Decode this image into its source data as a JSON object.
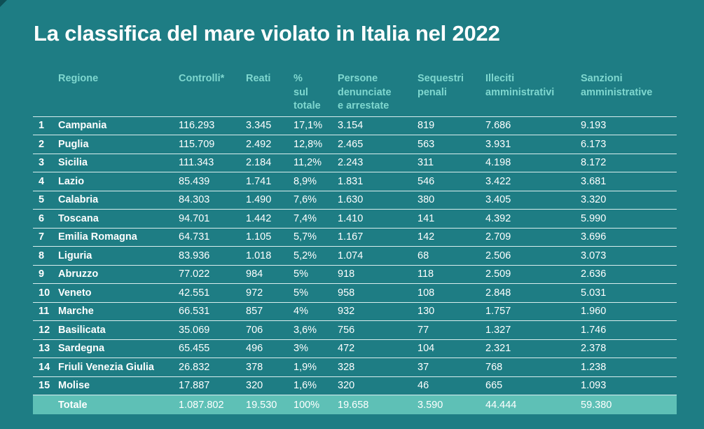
{
  "title": "La classifica del mare violato in Italia nel 2022",
  "headers": {
    "regione": "Regione",
    "controlli": "Controlli*",
    "reati": "Reati",
    "pct_1": "%",
    "pct_2": "sul",
    "pct_3": "totale",
    "persone_1": "Persone",
    "persone_2": "denunciate",
    "persone_3": "e arrestate",
    "sequestri_1": "Sequestri",
    "sequestri_2": "penali",
    "illeciti_1": "Illeciti",
    "illeciti_2": "amministrativi",
    "sanzioni_1": "Sanzioni",
    "sanzioni_2": "amministrative"
  },
  "rows": [
    {
      "rank": "1",
      "region": "Campania",
      "controlli": "116.293",
      "reati": "3.345",
      "pct": "17,1%",
      "persone": "3.154",
      "sequestri": "819",
      "illeciti": "7.686",
      "sanzioni": "9.193"
    },
    {
      "rank": "2",
      "region": "Puglia",
      "controlli": "115.709",
      "reati": "2.492",
      "pct": "12,8%",
      "persone": "2.465",
      "sequestri": "563",
      "illeciti": "3.931",
      "sanzioni": "6.173"
    },
    {
      "rank": "3",
      "region": "Sicilia",
      "controlli": "111.343",
      "reati": "2.184",
      "pct": "11,2%",
      "persone": "2.243",
      "sequestri": "311",
      "illeciti": "4.198",
      "sanzioni": "8.172"
    },
    {
      "rank": "4",
      "region": "Lazio",
      "controlli": "85.439",
      "reati": "1.741",
      "pct": "8,9%",
      "persone": "1.831",
      "sequestri": "546",
      "illeciti": "3.422",
      "sanzioni": "3.681"
    },
    {
      "rank": "5",
      "region": "Calabria",
      "controlli": "84.303",
      "reati": "1.490",
      "pct": "7,6%",
      "persone": "1.630",
      "sequestri": "380",
      "illeciti": "3.405",
      "sanzioni": "3.320"
    },
    {
      "rank": "6",
      "region": "Toscana",
      "controlli": "94.701",
      "reati": "1.442",
      "pct": "7,4%",
      "persone": "1.410",
      "sequestri": "141",
      "illeciti": "4.392",
      "sanzioni": "5.990"
    },
    {
      "rank": "7",
      "region": "Emilia Romagna",
      "controlli": "64.731",
      "reati": "1.105",
      "pct": "5,7%",
      "persone": "1.167",
      "sequestri": "142",
      "illeciti": "2.709",
      "sanzioni": "3.696"
    },
    {
      "rank": "8",
      "region": "Liguria",
      "controlli": "83.936",
      "reati": "1.018",
      "pct": "5,2%",
      "persone": "1.074",
      "sequestri": "68",
      "illeciti": "2.506",
      "sanzioni": "3.073"
    },
    {
      "rank": "9",
      "region": "Abruzzo",
      "controlli": "77.022",
      "reati": "984",
      "pct": "5%",
      "persone": "918",
      "sequestri": "118",
      "illeciti": "2.509",
      "sanzioni": "2.636"
    },
    {
      "rank": "10",
      "region": "Veneto",
      "controlli": "42.551",
      "reati": "972",
      "pct": "5%",
      "persone": "958",
      "sequestri": "108",
      "illeciti": "2.848",
      "sanzioni": "5.031"
    },
    {
      "rank": "11",
      "region": "Marche",
      "controlli": "66.531",
      "reati": "857",
      "pct": "4%",
      "persone": "932",
      "sequestri": "130",
      "illeciti": "1.757",
      "sanzioni": "1.960"
    },
    {
      "rank": "12",
      "region": "Basilicata",
      "controlli": "35.069",
      "reati": "706",
      "pct": "3,6%",
      "persone": "756",
      "sequestri": "77",
      "illeciti": "1.327",
      "sanzioni": "1.746"
    },
    {
      "rank": "13",
      "region": "Sardegna",
      "controlli": "65.455",
      "reati": "496",
      "pct": "3%",
      "persone": "472",
      "sequestri": "104",
      "illeciti": "2.321",
      "sanzioni": "2.378"
    },
    {
      "rank": "14",
      "region": "Friuli Venezia Giulia",
      "controlli": "26.832",
      "reati": "378",
      "pct": "1,9%",
      "persone": "328",
      "sequestri": "37",
      "illeciti": "768",
      "sanzioni": "1.238"
    },
    {
      "rank": "15",
      "region": "Molise",
      "controlli": "17.887",
      "reati": "320",
      "pct": "1,6%",
      "persone": "320",
      "sequestri": "46",
      "illeciti": "665",
      "sanzioni": "1.093"
    }
  ],
  "total": {
    "region": "Totale",
    "controlli": "1.087.802",
    "reati": "19.530",
    "pct": "100%",
    "persone": "19.658",
    "sequestri": "3.590",
    "illeciti": "44.444",
    "sanzioni": "59.380"
  }
}
